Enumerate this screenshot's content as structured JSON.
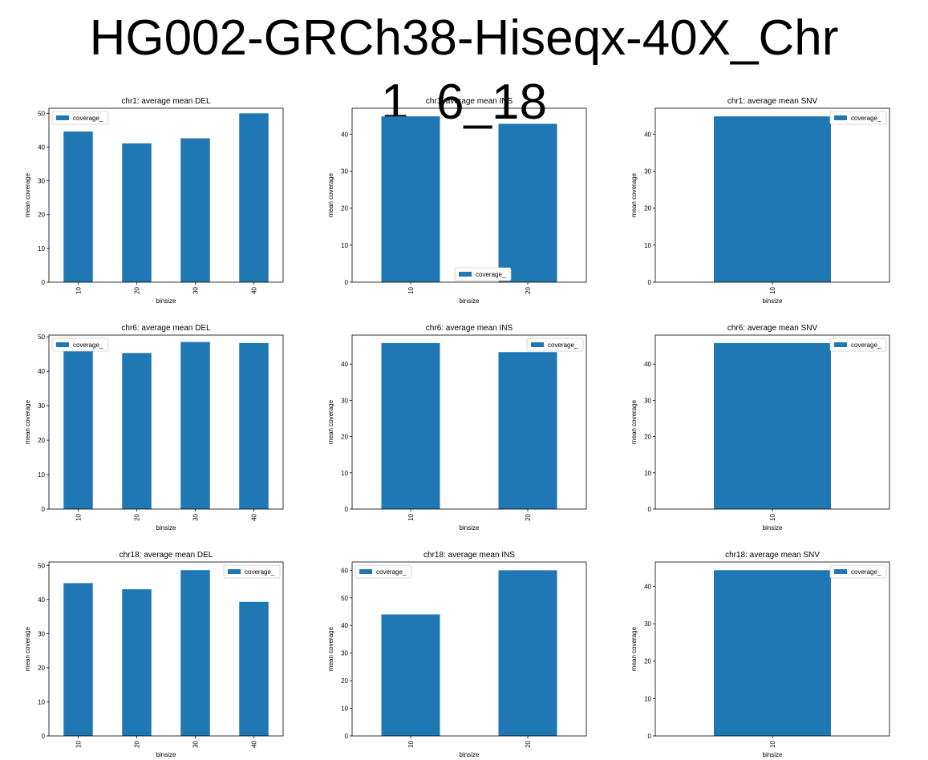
{
  "title": "HG002-GRCh38-Hiseqx-40X_Chr 1_6_18",
  "colors": {
    "bar": "#1f77b4"
  },
  "chart_data": [
    {
      "type": "bar",
      "title": "chr1: average mean DEL",
      "xlabel": "binsize",
      "ylabel": "mean coverage",
      "categories": [
        "10",
        "20",
        "30",
        "40"
      ],
      "series": [
        {
          "name": "coverage_",
          "values": [
            44.6,
            41.1,
            42.6,
            50.0
          ]
        }
      ],
      "ylim": [
        0,
        51.5
      ],
      "yticks": [
        0,
        10,
        20,
        30,
        40,
        50
      ],
      "legend": "upper left"
    },
    {
      "type": "bar",
      "title": "chr1: average mean INS",
      "xlabel": "binsize",
      "ylabel": "mean coverage",
      "categories": [
        "10",
        "20"
      ],
      "series": [
        {
          "name": "coverage_",
          "values": [
            44.8,
            42.8
          ]
        }
      ],
      "ylim": [
        0,
        47
      ],
      "yticks": [
        0,
        10,
        20,
        30,
        40
      ],
      "legend": "lower center"
    },
    {
      "type": "bar",
      "title": "chr1: average mean SNV",
      "xlabel": "binsize",
      "ylabel": "mean coverage",
      "categories": [
        "10"
      ],
      "series": [
        {
          "name": "coverage_",
          "values": [
            44.8
          ]
        }
      ],
      "ylim": [
        0,
        47
      ],
      "yticks": [
        0,
        10,
        20,
        30,
        40
      ],
      "legend": "upper right"
    },
    {
      "type": "bar",
      "title": "chr6: average mean DEL",
      "xlabel": "binsize",
      "ylabel": "mean coverage",
      "categories": [
        "10",
        "20",
        "30",
        "40"
      ],
      "series": [
        {
          "name": "coverage_",
          "values": [
            46.0,
            45.3,
            48.5,
            48.2
          ]
        }
      ],
      "ylim": [
        0,
        50.5
      ],
      "yticks": [
        0,
        10,
        20,
        30,
        40,
        50
      ],
      "legend": "upper left"
    },
    {
      "type": "bar",
      "title": "chr6: average mean INS",
      "xlabel": "binsize",
      "ylabel": "mean coverage",
      "categories": [
        "10",
        "20"
      ],
      "series": [
        {
          "name": "coverage_",
          "values": [
            45.8,
            43.3
          ]
        }
      ],
      "ylim": [
        0,
        48
      ],
      "yticks": [
        0,
        10,
        20,
        30,
        40
      ],
      "legend": "upper right"
    },
    {
      "type": "bar",
      "title": "chr6: average mean SNV",
      "xlabel": "binsize",
      "ylabel": "mean coverage",
      "categories": [
        "10"
      ],
      "series": [
        {
          "name": "coverage_",
          "values": [
            45.8
          ]
        }
      ],
      "ylim": [
        0,
        48
      ],
      "yticks": [
        0,
        10,
        20,
        30,
        40
      ],
      "legend": "upper right"
    },
    {
      "type": "bar",
      "title": "chr18: average mean DEL",
      "xlabel": "binsize",
      "ylabel": "mean coverage",
      "categories": [
        "10",
        "20",
        "30",
        "40"
      ],
      "series": [
        {
          "name": "coverage_",
          "values": [
            44.8,
            43.0,
            48.6,
            39.3
          ]
        }
      ],
      "ylim": [
        0,
        51
      ],
      "yticks": [
        0,
        10,
        20,
        30,
        40,
        50
      ],
      "legend": "upper right"
    },
    {
      "type": "bar",
      "title": "chr18: average mean INS",
      "xlabel": "binsize",
      "ylabel": "mean coverage",
      "categories": [
        "10",
        "20"
      ],
      "series": [
        {
          "name": "coverage_",
          "values": [
            44.0,
            60.0
          ]
        }
      ],
      "ylim": [
        0,
        63
      ],
      "yticks": [
        0,
        10,
        20,
        30,
        40,
        50,
        60
      ],
      "legend": "upper left"
    },
    {
      "type": "bar",
      "title": "chr18: average mean SNV",
      "xlabel": "binsize",
      "ylabel": "mean coverage",
      "categories": [
        "10"
      ],
      "series": [
        {
          "name": "coverage_",
          "values": [
            44.3
          ]
        }
      ],
      "ylim": [
        0,
        46.5
      ],
      "yticks": [
        0,
        10,
        20,
        30,
        40
      ],
      "legend": "upper right"
    }
  ]
}
